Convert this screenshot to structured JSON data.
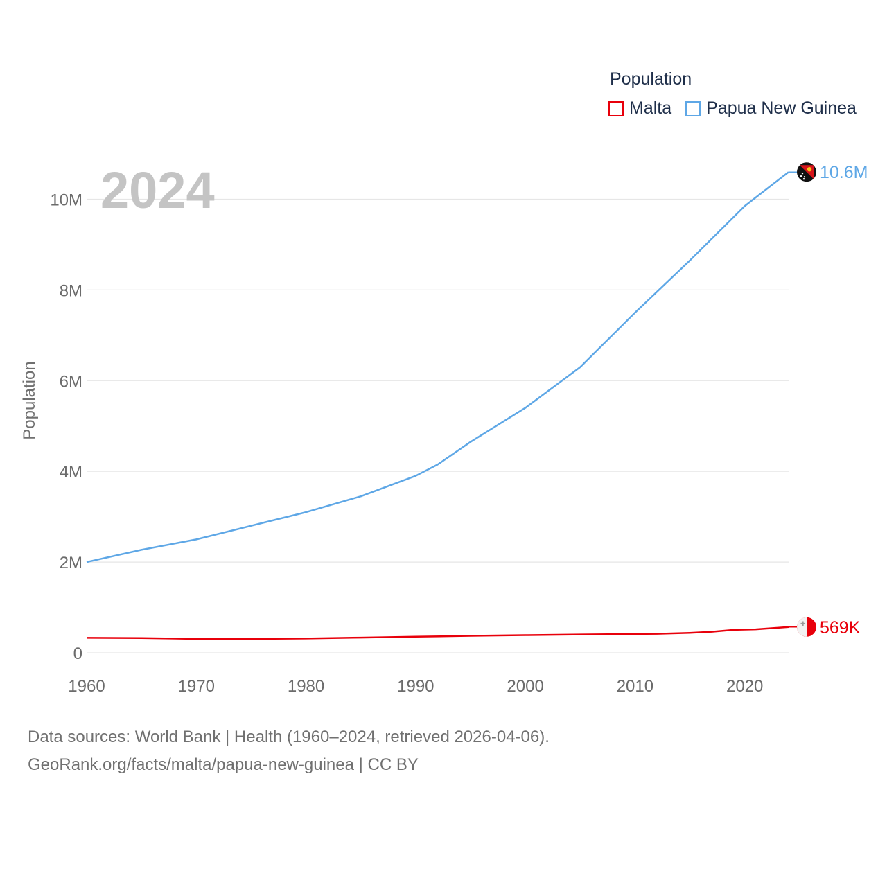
{
  "legend": {
    "title": "Population",
    "items": [
      {
        "name": "Malta",
        "color": "#e8000b"
      },
      {
        "name": "Papua New Guinea",
        "color": "#5ea7e6"
      }
    ]
  },
  "source_line_1": "Data sources: World Bank | Health (1960–2024, retrieved 2026-04-06).",
  "source_line_2": "GeoRank.org/facts/malta/papua-new-guinea | CC BY",
  "chart_data": {
    "type": "line",
    "title": "Population",
    "year_label": "2024",
    "xlabel": "",
    "ylabel": "Population",
    "xlim": [
      1960,
      2024
    ],
    "ylim": [
      0,
      10000000
    ],
    "x_ticks": [
      1960,
      1970,
      1980,
      1990,
      2000,
      2010,
      2020
    ],
    "y_ticks": [
      0,
      2000000,
      4000000,
      6000000,
      8000000,
      10000000
    ],
    "y_tick_labels": [
      "0",
      "2M",
      "4M",
      "6M",
      "8M",
      "10M"
    ],
    "grid": true,
    "series": [
      {
        "name": "Papua New Guinea",
        "color": "#5ea7e6",
        "end_label": "10.6M",
        "points": [
          [
            1960,
            2000000
          ],
          [
            1965,
            2270000
          ],
          [
            1970,
            2500000
          ],
          [
            1975,
            2800000
          ],
          [
            1980,
            3100000
          ],
          [
            1985,
            3450000
          ],
          [
            1990,
            3900000
          ],
          [
            1992,
            4150000
          ],
          [
            1995,
            4650000
          ],
          [
            2000,
            5400000
          ],
          [
            2005,
            6300000
          ],
          [
            2010,
            7500000
          ],
          [
            2015,
            8650000
          ],
          [
            2020,
            9850000
          ],
          [
            2024,
            10600000
          ]
        ]
      },
      {
        "name": "Malta",
        "color": "#e8000b",
        "end_label": "569K",
        "points": [
          [
            1960,
            330000
          ],
          [
            1965,
            325000
          ],
          [
            1970,
            305000
          ],
          [
            1975,
            305000
          ],
          [
            1980,
            315000
          ],
          [
            1985,
            335000
          ],
          [
            1990,
            355000
          ],
          [
            1995,
            375000
          ],
          [
            2000,
            390000
          ],
          [
            2005,
            403000
          ],
          [
            2010,
            414000
          ],
          [
            2012,
            418000
          ],
          [
            2015,
            440000
          ],
          [
            2017,
            465000
          ],
          [
            2019,
            505000
          ],
          [
            2021,
            518000
          ],
          [
            2024,
            569000
          ]
        ]
      }
    ]
  }
}
